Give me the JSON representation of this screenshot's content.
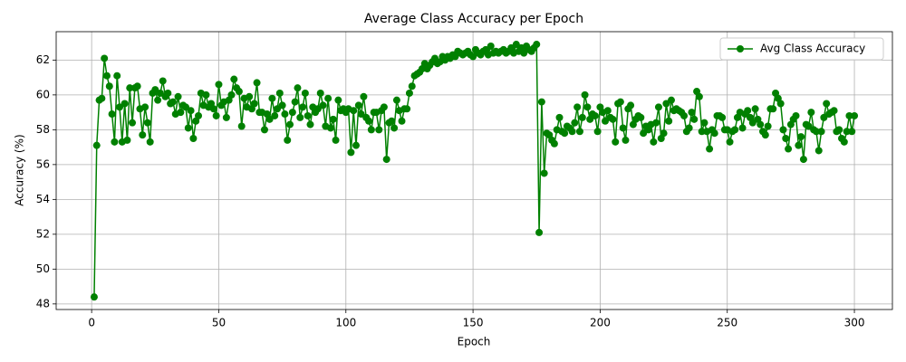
{
  "chart_data": {
    "type": "line",
    "title": "Average Class Accuracy per Epoch",
    "x_label": "Epoch",
    "y_label": "Accuracy (%)",
    "xlim": [
      -13.95,
      314.95
    ],
    "ylim": [
      47.68,
      63.63
    ],
    "xticks": [
      0,
      50,
      100,
      150,
      200,
      250,
      300
    ],
    "yticks": [
      48,
      50,
      52,
      54,
      56,
      58,
      60,
      62
    ],
    "grid": true,
    "legend": "upper right",
    "x": [
      1,
      2,
      3,
      4,
      5,
      6,
      7,
      8,
      9,
      10,
      11,
      12,
      13,
      14,
      15,
      16,
      17,
      18,
      19,
      20,
      21,
      22,
      23,
      24,
      25,
      26,
      27,
      28,
      29,
      30,
      31,
      32,
      33,
      34,
      35,
      36,
      37,
      38,
      39,
      40,
      41,
      42,
      43,
      44,
      45,
      46,
      47,
      48,
      49,
      50,
      51,
      52,
      53,
      54,
      55,
      56,
      57,
      58,
      59,
      60,
      61,
      62,
      63,
      64,
      65,
      66,
      67,
      68,
      69,
      70,
      71,
      72,
      73,
      74,
      75,
      76,
      77,
      78,
      79,
      80,
      81,
      82,
      83,
      84,
      85,
      86,
      87,
      88,
      89,
      90,
      91,
      92,
      93,
      94,
      95,
      96,
      97,
      98,
      99,
      100,
      101,
      102,
      103,
      104,
      105,
      106,
      107,
      108,
      109,
      110,
      111,
      112,
      113,
      114,
      115,
      116,
      117,
      118,
      119,
      120,
      121,
      122,
      123,
      124,
      125,
      126,
      127,
      128,
      129,
      130,
      131,
      132,
      133,
      134,
      135,
      136,
      137,
      138,
      139,
      140,
      141,
      142,
      143,
      144,
      145,
      146,
      147,
      148,
      149,
      150,
      151,
      152,
      153,
      154,
      155,
      156,
      157,
      158,
      159,
      160,
      161,
      162,
      163,
      164,
      165,
      166,
      167,
      168,
      169,
      170,
      171,
      172,
      173,
      174,
      175,
      176,
      177,
      178,
      179,
      180,
      181,
      182,
      183,
      184,
      185,
      186,
      187,
      188,
      189,
      190,
      191,
      192,
      193,
      194,
      195,
      196,
      197,
      198,
      199,
      200,
      201,
      202,
      203,
      204,
      205,
      206,
      207,
      208,
      209,
      210,
      211,
      212,
      213,
      214,
      215,
      216,
      217,
      218,
      219,
      220,
      221,
      222,
      223,
      224,
      225,
      226,
      227,
      228,
      229,
      230,
      231,
      232,
      233,
      234,
      235,
      236,
      237,
      238,
      239,
      240,
      241,
      242,
      243,
      244,
      245,
      246,
      247,
      248,
      249,
      250,
      251,
      252,
      253,
      254,
      255,
      256,
      257,
      258,
      259,
      260,
      261,
      262,
      263,
      264,
      265,
      266,
      267,
      268,
      269,
      270,
      271,
      272,
      273,
      274,
      275,
      276,
      277,
      278,
      279,
      280,
      281,
      282,
      283,
      284,
      285,
      286,
      287,
      288,
      289,
      290,
      291,
      292,
      293,
      294,
      295,
      296,
      297,
      298,
      299,
      300
    ],
    "series": [
      {
        "name": "Avg Class Accuracy",
        "color": "#008000",
        "values": [
          48.4,
          57.1,
          59.7,
          59.8,
          62.1,
          61.1,
          60.5,
          58.9,
          57.3,
          61.1,
          59.3,
          57.3,
          59.5,
          57.4,
          60.4,
          58.4,
          60.4,
          60.5,
          59.2,
          57.7,
          59.3,
          58.4,
          57.3,
          60.1,
          60.3,
          59.7,
          60.1,
          60.8,
          59.9,
          60.1,
          59.5,
          59.6,
          58.9,
          59.9,
          59.0,
          59.4,
          59.3,
          58.1,
          59.1,
          57.5,
          58.5,
          58.8,
          60.1,
          59.4,
          60.0,
          59.3,
          59.5,
          59.2,
          58.8,
          60.6,
          59.4,
          59.6,
          58.7,
          59.7,
          60.0,
          60.9,
          60.4,
          60.2,
          58.2,
          59.8,
          59.3,
          59.9,
          59.2,
          59.5,
          60.7,
          59.0,
          59.0,
          58.0,
          58.9,
          58.6,
          59.8,
          58.8,
          59.2,
          60.1,
          59.4,
          58.9,
          57.4,
          58.3,
          59.0,
          59.6,
          60.4,
          58.7,
          59.3,
          60.1,
          58.8,
          58.3,
          59.3,
          59.0,
          59.2,
          60.1,
          59.4,
          58.2,
          59.8,
          58.1,
          58.6,
          57.4,
          59.7,
          59.1,
          59.2,
          59.0,
          59.2,
          56.7,
          59.1,
          57.1,
          59.4,
          58.9,
          59.9,
          58.7,
          58.5,
          58.0,
          59.0,
          59.0,
          58.0,
          59.1,
          59.3,
          56.3,
          58.4,
          58.5,
          58.1,
          59.7,
          59.1,
          58.5,
          59.2,
          59.2,
          60.1,
          60.5,
          61.1,
          61.2,
          61.3,
          61.5,
          61.8,
          61.5,
          61.7,
          61.9,
          62.1,
          61.8,
          61.9,
          62.2,
          62.0,
          62.2,
          62.1,
          62.3,
          62.2,
          62.5,
          62.4,
          62.3,
          62.4,
          62.5,
          62.3,
          62.2,
          62.6,
          62.4,
          62.3,
          62.5,
          62.6,
          62.3,
          62.8,
          62.4,
          62.5,
          62.4,
          62.5,
          62.6,
          62.4,
          62.5,
          62.7,
          62.4,
          62.9,
          62.5,
          62.7,
          62.4,
          62.8,
          62.6,
          62.5,
          62.7,
          62.9,
          52.1,
          59.6,
          55.5,
          57.8,
          57.7,
          57.4,
          57.2,
          58.0,
          58.7,
          57.9,
          57.8,
          58.2,
          58.1,
          57.9,
          58.4,
          59.3,
          57.9,
          58.7,
          60.0,
          59.3,
          58.6,
          58.9,
          58.8,
          57.9,
          59.3,
          59.0,
          58.5,
          59.1,
          58.7,
          58.6,
          57.3,
          59.5,
          59.6,
          58.1,
          57.4,
          59.2,
          59.4,
          58.3,
          58.6,
          58.8,
          58.7,
          57.8,
          58.2,
          58.0,
          58.3,
          57.3,
          58.4,
          59.3,
          57.5,
          57.8,
          59.5,
          58.5,
          59.7,
          59.1,
          59.2,
          59.1,
          59.0,
          58.8,
          57.9,
          58.1,
          59.0,
          58.6,
          60.2,
          59.9,
          57.9,
          58.4,
          57.9,
          56.9,
          58.0,
          57.8,
          58.8,
          58.8,
          58.7,
          58.0,
          58.0,
          57.3,
          57.9,
          58.0,
          58.7,
          59.0,
          58.1,
          58.9,
          59.1,
          58.7,
          58.4,
          59.2,
          58.6,
          58.3,
          57.9,
          57.7,
          58.2,
          59.2,
          59.2,
          60.1,
          59.8,
          59.5,
          58.0,
          57.5,
          56.9,
          58.3,
          58.6,
          58.8,
          57.1,
          57.6,
          56.3,
          58.3,
          58.2,
          59.0,
          58.0,
          57.9,
          56.8,
          57.9,
          58.7,
          59.5,
          58.9,
          59.0,
          59.1,
          57.9,
          58.0,
          57.5,
          57.3,
          57.9,
          58.8,
          57.9,
          58.8
        ]
      }
    ]
  }
}
